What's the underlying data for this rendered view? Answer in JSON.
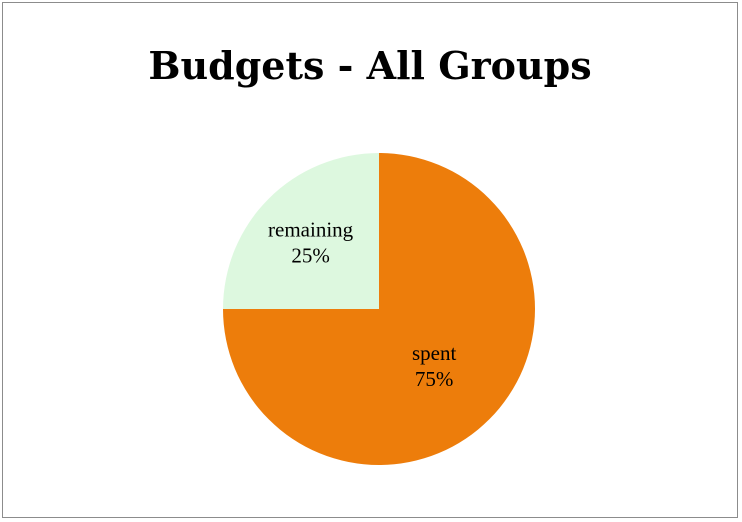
{
  "chart_data": {
    "type": "pie",
    "title": "Budgets - All Groups",
    "slices": [
      {
        "label": "spent",
        "value": 75,
        "value_label": "75%",
        "color": "#ED7D0B"
      },
      {
        "label": "remaining",
        "value": 25,
        "value_label": "25%",
        "color": "#DDF8DF"
      }
    ]
  }
}
